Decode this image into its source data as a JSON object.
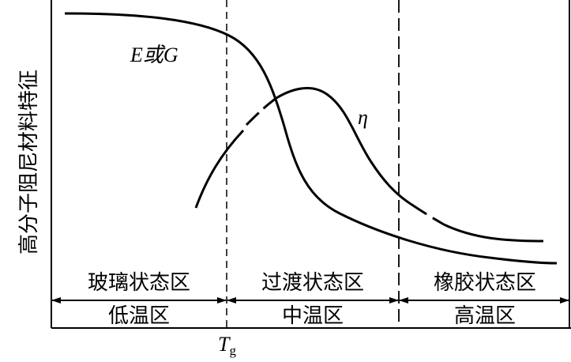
{
  "y_axis_label": "高分子阻尼材料特征",
  "curves": [
    {
      "label": "E或G"
    },
    {
      "label": "η"
    }
  ],
  "zones": [
    {
      "state": "玻璃状态区",
      "temperature": "低温区"
    },
    {
      "state": "过渡状态区",
      "temperature": "中温区"
    },
    {
      "state": "橡胶状态区",
      "temperature": "高温区"
    }
  ],
  "tg_label": {
    "main": "T",
    "sub": "g"
  }
}
